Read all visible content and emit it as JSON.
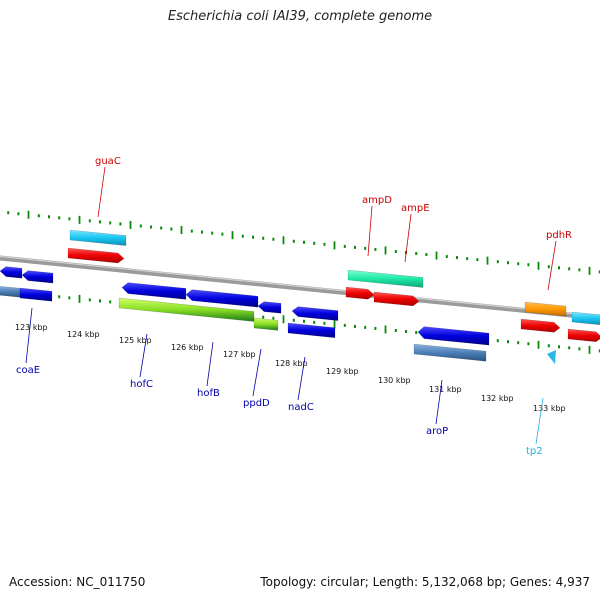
{
  "title": "Escherichia coli IAI39, complete genome",
  "footer": {
    "accession": "Accession: NC_011750",
    "summary": "Topology: circular; Length: 5,132,068 bp; Genes: 4,937"
  },
  "colors": {
    "tick": "#0a8a0a",
    "backbone": "#888888",
    "top_label": "#cc0000",
    "bottom_label": "#0000aa",
    "trna_label": "#1fb0e0"
  },
  "ticks": [
    {
      "label": "123 kbp"
    },
    {
      "label": "124 kbp"
    },
    {
      "label": "125 kbp"
    },
    {
      "label": "126 kbp"
    },
    {
      "label": "127 kbp"
    },
    {
      "label": "128 kbp"
    },
    {
      "label": "129 kbp"
    },
    {
      "label": "130 kbp"
    },
    {
      "label": "131 kbp"
    },
    {
      "label": "132 kbp"
    },
    {
      "label": "133 kbp"
    }
  ],
  "gene_labels": [
    {
      "name": "guaC",
      "side": "top"
    },
    {
      "name": "ampD",
      "side": "top"
    },
    {
      "name": "ampE",
      "side": "top"
    },
    {
      "name": "pdhR",
      "side": "top"
    },
    {
      "name": "coaE",
      "side": "bottom"
    },
    {
      "name": "hofC",
      "side": "bottom"
    },
    {
      "name": "hofB",
      "side": "bottom"
    },
    {
      "name": "ppdD",
      "side": "bottom"
    },
    {
      "name": "nadC",
      "side": "bottom"
    },
    {
      "name": "aroP",
      "side": "bottom"
    },
    {
      "name": "tp2",
      "side": "bottom"
    }
  ]
}
